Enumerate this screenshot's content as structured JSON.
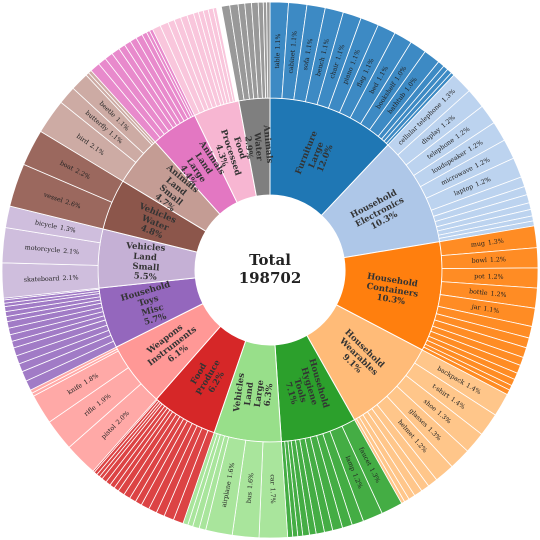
{
  "chart_data": {
    "type": "sunburst",
    "center_label": "Total",
    "total": 198702,
    "groups": [
      {
        "name": "Furniture Large",
        "value": 12.0,
        "value_label": "12.0%",
        "color": "#1f77b4",
        "outer_color": "#3d8ac4",
        "children": {
          "labels": [
            "table",
            "cabinet",
            "sofa",
            "bench",
            "chair",
            "piano",
            "flag",
            "bed",
            "bookshelf",
            "bathtub",
            null,
            null,
            null,
            null
          ],
          "values": [
            1.1,
            1.1,
            1.1,
            1.1,
            1.1,
            1.1,
            1.1,
            1.1,
            1.0,
            1.0,
            0.4,
            0.3,
            0.3,
            0.2
          ],
          "value_labels": [
            "1.1%",
            "1.1%",
            "1.1%",
            "1.1%",
            "1.1%",
            "1.1%",
            "1.1%",
            "1.1%",
            "1.0%",
            "1.0%",
            null,
            null,
            null,
            null
          ]
        }
      },
      {
        "name": "Household Electronics",
        "value": 10.3,
        "value_label": "10.3%",
        "color": "#aec7e8",
        "outer_color": "#bcd3ef",
        "children": {
          "labels": [
            "cellular telephone",
            "display",
            "telephone",
            "loudspeaker",
            "microwave",
            "laptop",
            null,
            null,
            null,
            null,
            null,
            null,
            null
          ],
          "values": [
            1.3,
            1.2,
            1.2,
            1.2,
            1.2,
            1.2,
            0.6,
            0.5,
            0.5,
            0.4,
            0.4,
            0.3,
            0.3
          ],
          "value_labels": [
            "1.3%",
            "1.2%",
            "1.2%",
            "1.2%",
            "1.2%",
            "1.2%",
            null,
            null,
            null,
            null,
            null,
            null,
            null
          ]
        }
      },
      {
        "name": "Household Containers",
        "value": 10.3,
        "value_label": "10.3%",
        "color": "#ff7f0e",
        "outer_color": "#ff8c24",
        "children": {
          "labels": [
            "mug",
            "bowl",
            "pot",
            "bottle",
            "jar",
            null,
            null,
            null,
            null,
            null,
            null,
            null,
            null,
            null
          ],
          "values": [
            1.3,
            1.2,
            1.2,
            1.2,
            1.1,
            0.7,
            0.6,
            0.6,
            0.5,
            0.5,
            0.4,
            0.4,
            0.3,
            0.3
          ],
          "value_labels": [
            "1.3%",
            "1.2%",
            "1.2%",
            "1.2%",
            "1.1%",
            null,
            null,
            null,
            null,
            null,
            null,
            null,
            null,
            null
          ]
        }
      },
      {
        "name": "Household Wearables",
        "value": 9.1,
        "value_label": "9.1%",
        "color": "#ffbb78",
        "outer_color": "#ffc68a",
        "children": {
          "labels": [
            "backpack",
            "t-shirt",
            "shoe",
            "glasses",
            "helmet",
            null,
            null,
            null,
            null,
            null,
            null
          ],
          "values": [
            1.4,
            1.4,
            1.3,
            1.3,
            1.2,
            0.6,
            0.5,
            0.5,
            0.4,
            0.3,
            0.2
          ],
          "value_labels": [
            "1.4%",
            "1.4%",
            "1.3%",
            "1.3%",
            "1.2%",
            null,
            null,
            null,
            null,
            null,
            null
          ]
        }
      },
      {
        "name": "Household Hygiene Tools",
        "value": 7.1,
        "value_label": "7.1%",
        "color": "#2ca02c",
        "outer_color": "#44ad44",
        "children": {
          "labels": [
            "faucet",
            "lamp",
            null,
            null,
            null,
            null,
            null,
            null,
            null,
            null,
            null,
            null
          ],
          "values": [
            1.3,
            1.2,
            0.7,
            0.6,
            0.6,
            0.5,
            0.5,
            0.4,
            0.4,
            0.3,
            0.3,
            0.3
          ],
          "value_labels": [
            "1.3%",
            "1.2%",
            null,
            null,
            null,
            null,
            null,
            null,
            null,
            null,
            null,
            null
          ]
        }
      },
      {
        "name": "Vehicles Land Large",
        "value": 6.3,
        "value_label": "6.3%",
        "color": "#98df8a",
        "outer_color": "#a9e59c",
        "children": {
          "labels": [
            "car",
            "bus",
            "airplane",
            null,
            null,
            null,
            null
          ],
          "values": [
            1.7,
            1.6,
            1.6,
            0.4,
            0.4,
            0.3,
            0.3
          ],
          "value_labels": [
            "1.7%",
            "1.6%",
            "1.6%",
            null,
            null,
            null,
            null
          ]
        }
      },
      {
        "name": "Food Produce",
        "value": 6.2,
        "value_label": "6.2%",
        "color": "#d62728",
        "outer_color": "#dc4344",
        "children": {
          "labels": [
            null,
            null,
            null,
            null,
            null,
            null,
            null,
            null,
            null,
            null,
            null,
            null,
            null,
            null,
            null,
            null,
            null
          ],
          "values": [
            0.6,
            0.6,
            0.5,
            0.5,
            0.5,
            0.4,
            0.4,
            0.4,
            0.4,
            0.3,
            0.3,
            0.3,
            0.3,
            0.2,
            0.2,
            0.2,
            0.1
          ],
          "value_labels": [
            null,
            null,
            null,
            null,
            null,
            null,
            null,
            null,
            null,
            null,
            null,
            null,
            null,
            null,
            null,
            null,
            null
          ]
        }
      },
      {
        "name": "Weapons Instruments",
        "value": 6.1,
        "value_label": "6.1%",
        "color": "#ff9896",
        "outer_color": "#ffa9a7",
        "children": {
          "labels": [
            "pistol",
            "rifle",
            "knife",
            null,
            null
          ],
          "values": [
            2.0,
            1.9,
            1.8,
            0.2,
            0.2
          ],
          "value_labels": [
            "2.0%",
            "1.9%",
            "1.8%",
            null,
            null
          ]
        }
      },
      {
        "name": "Household Toys Misc",
        "value": 5.7,
        "value_label": "5.7%",
        "color": "#9467bd",
        "outer_color": "#a17bc6",
        "children": {
          "labels": [
            null,
            null,
            null,
            null,
            null,
            null,
            null,
            null,
            null,
            null,
            null,
            null,
            null,
            null,
            null
          ],
          "values": [
            0.6,
            0.6,
            0.5,
            0.5,
            0.5,
            0.4,
            0.4,
            0.4,
            0.4,
            0.3,
            0.3,
            0.3,
            0.2,
            0.2,
            0.1
          ],
          "value_labels": [
            null,
            null,
            null,
            null,
            null,
            null,
            null,
            null,
            null,
            null,
            null,
            null,
            null,
            null,
            null
          ]
        }
      },
      {
        "name": "Vehicles Land Small",
        "value": 5.5,
        "value_label": "5.5%",
        "color": "#c5b0d5",
        "outer_color": "#cfbedd",
        "children": {
          "labels": [
            "skateboard",
            "motorcycle",
            "bicycle"
          ],
          "values": [
            2.1,
            2.1,
            1.3
          ],
          "value_labels": [
            "2.1%",
            "2.1%",
            "1.3%"
          ]
        }
      },
      {
        "name": "Vehicles Water",
        "value": 4.8,
        "value_label": "4.8%",
        "color": "#8c564b",
        "outer_color": "#9b685e",
        "children": {
          "labels": [
            "vessel",
            "boat"
          ],
          "values": [
            2.6,
            2.2
          ],
          "value_labels": [
            "2.6%",
            "2.2%"
          ]
        }
      },
      {
        "name": "Animals Land Small",
        "value": 4.7,
        "value_label": "4.7%",
        "color": "#c49c94",
        "outer_color": "#cdaba4",
        "children": {
          "labels": [
            "bird",
            "butterfly",
            "beetle",
            null,
            null
          ],
          "values": [
            2.1,
            1.1,
            1.1,
            0.2,
            0.2
          ],
          "value_labels": [
            "2.1%",
            "1.1%",
            "1.1%",
            null,
            null
          ]
        }
      },
      {
        "name": "Animals Land Large",
        "value": 4.4,
        "value_label": "4.4%",
        "color": "#e377c2",
        "outer_color": "#e88acc",
        "children": {
          "labels": [
            null,
            null,
            null,
            null,
            null,
            null,
            null,
            null,
            null,
            null,
            null
          ],
          "values": [
            0.6,
            0.5,
            0.5,
            0.5,
            0.4,
            0.4,
            0.4,
            0.4,
            0.3,
            0.2,
            0.2
          ],
          "value_labels": [
            null,
            null,
            null,
            null,
            null,
            null,
            null,
            null,
            null,
            null,
            null
          ]
        }
      },
      {
        "name": "Food Processed",
        "value": 4.3,
        "value_label": "4.3%",
        "color": "#f7b6d2",
        "outer_color": "#f9c6dc",
        "children": {
          "labels": [
            null,
            null,
            null,
            null,
            null,
            null,
            null,
            null,
            null,
            null,
            null
          ],
          "values": [
            0.5,
            0.5,
            0.4,
            0.4,
            0.4,
            0.4,
            0.3,
            0.3,
            0.3,
            0.3,
            0.2
          ],
          "value_labels": [
            null,
            null,
            null,
            null,
            null,
            null,
            null,
            null,
            null,
            null,
            null
          ]
        }
      },
      {
        "name": "Animals Water",
        "value": 2.9,
        "value_label": "2.9%",
        "color": "#7f7f7f",
        "outer_color": "#999999",
        "children": {
          "labels": [
            null,
            null,
            null,
            null,
            null,
            null,
            null,
            null
          ],
          "values": [
            0.5,
            0.5,
            0.4,
            0.4,
            0.4,
            0.3,
            0.2,
            0.2
          ],
          "value_labels": [
            null,
            null,
            null,
            null,
            null,
            null,
            null,
            null
          ]
        }
      }
    ]
  }
}
